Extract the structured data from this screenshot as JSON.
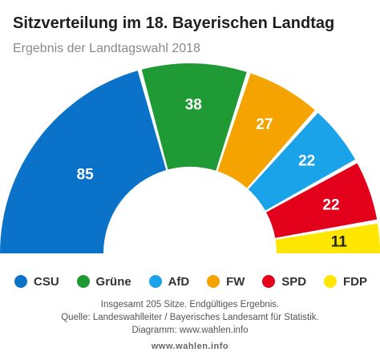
{
  "header": {
    "title": "Sitzverteilung im 18. Bayerischen Landtag",
    "subtitle": "Ergebnis der Landtagswahl 2018"
  },
  "chart_data": {
    "type": "pie",
    "variant": "parliament-semicircle",
    "categories": [
      "CSU",
      "Grüne",
      "AfD",
      "FW",
      "SPD",
      "FDP"
    ],
    "values": [
      85,
      38,
      22,
      27,
      22,
      11
    ],
    "display_order": [
      "CSU",
      "Grüne",
      "FW",
      "AfD",
      "SPD",
      "FDP"
    ],
    "colors": {
      "CSU": "#0a73c9",
      "Grüne": "#1f9a34",
      "AfD": "#1aa3e8",
      "FW": "#f4a300",
      "SPD": "#e3001b",
      "FDP": "#ffe600"
    },
    "total": 205,
    "legend_position": "bottom"
  },
  "legend": [
    {
      "label": "CSU",
      "color": "#0a73c9"
    },
    {
      "label": "Grüne",
      "color": "#1f9a34"
    },
    {
      "label": "AfD",
      "color": "#1aa3e8"
    },
    {
      "label": "FW",
      "color": "#f4a300"
    },
    {
      "label": "SPD",
      "color": "#e3001b"
    },
    {
      "label": "FDP",
      "color": "#ffe600"
    }
  ],
  "footer": {
    "line1": "Insgesamt 205 Sitze. Endgültiges Ergebnis.",
    "line2": "Quelle: Landeswahlleiter / Bayerisches Landesamt für Statistik.",
    "line3": "Diagramm: www.wahlen.info",
    "brand": "www.wahlen.info"
  }
}
